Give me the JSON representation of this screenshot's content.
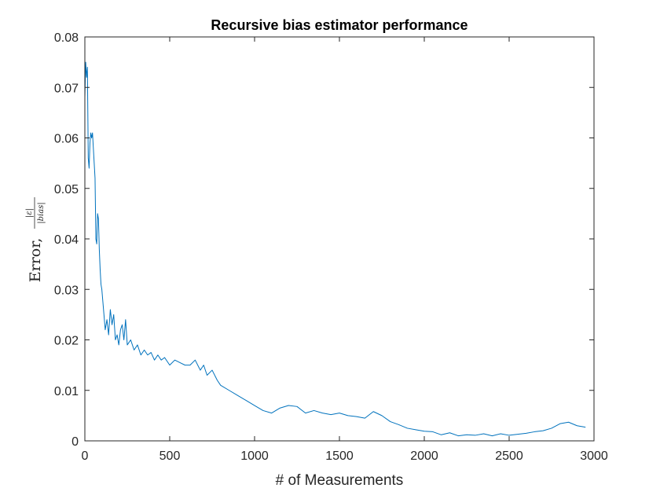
{
  "chart_data": {
    "type": "line",
    "title": "Recursive bias estimator performance",
    "xlabel": "# of Measurements",
    "ylabel": "Error,",
    "ylabel_numerator": "|ε|",
    "ylabel_denominator": "|bias|",
    "xlim": [
      0,
      3000
    ],
    "ylim": [
      0,
      0.08
    ],
    "xticks": [
      0,
      500,
      1000,
      1500,
      2000,
      2500,
      3000
    ],
    "xtick_labels": [
      "0",
      "500",
      "1000",
      "1500",
      "2000",
      "2500",
      "3000"
    ],
    "yticks": [
      0,
      0.01,
      0.02,
      0.03,
      0.04,
      0.05,
      0.06,
      0.07,
      0.08
    ],
    "ytick_labels": [
      "0",
      "0.01",
      "0.02",
      "0.03",
      "0.04",
      "0.05",
      "0.06",
      "0.07",
      "0.08"
    ],
    "grid": false,
    "legend": "none",
    "line_color": "#0072BD",
    "series": [
      {
        "x": [
          0,
          5,
          10,
          15,
          20,
          25,
          30,
          35,
          40,
          45,
          50,
          55,
          60,
          65,
          70,
          75,
          80,
          85,
          90,
          95,
          100,
          110,
          120,
          130,
          140,
          150,
          160,
          170,
          180,
          190,
          200,
          210,
          220,
          230,
          240,
          250,
          270,
          290,
          310,
          330,
          350,
          370,
          390,
          410,
          430,
          450,
          470,
          500,
          530,
          560,
          590,
          620,
          650,
          680,
          700,
          720,
          750,
          780,
          800,
          850,
          900,
          950,
          1000,
          1050,
          1100,
          1150,
          1200,
          1250,
          1300,
          1350,
          1400,
          1450,
          1500,
          1550,
          1600,
          1650,
          1700,
          1750,
          1800,
          1850,
          1900,
          1950,
          2000,
          2050,
          2100,
          2150,
          2200,
          2250,
          2300,
          2350,
          2400,
          2450,
          2500,
          2550,
          2600,
          2650,
          2700,
          2750,
          2800,
          2850,
          2900,
          2950
        ],
        "y": [
          0.068,
          0.075,
          0.072,
          0.074,
          0.056,
          0.054,
          0.059,
          0.061,
          0.06,
          0.061,
          0.058,
          0.055,
          0.052,
          0.04,
          0.039,
          0.045,
          0.044,
          0.038,
          0.034,
          0.031,
          0.03,
          0.026,
          0.022,
          0.024,
          0.021,
          0.026,
          0.023,
          0.025,
          0.02,
          0.021,
          0.019,
          0.022,
          0.023,
          0.02,
          0.024,
          0.019,
          0.02,
          0.018,
          0.019,
          0.017,
          0.018,
          0.017,
          0.0175,
          0.016,
          0.017,
          0.016,
          0.0165,
          0.015,
          0.016,
          0.0155,
          0.015,
          0.015,
          0.016,
          0.014,
          0.015,
          0.013,
          0.014,
          0.012,
          0.011,
          0.01,
          0.009,
          0.008,
          0.007,
          0.006,
          0.0055,
          0.0065,
          0.007,
          0.0068,
          0.0055,
          0.006,
          0.0055,
          0.0052,
          0.0055,
          0.005,
          0.0048,
          0.0045,
          0.0058,
          0.005,
          0.0038,
          0.0032,
          0.0025,
          0.0022,
          0.0019,
          0.0018,
          0.0012,
          0.0016,
          0.001,
          0.0012,
          0.0011,
          0.0014,
          0.001,
          0.0014,
          0.0011,
          0.0013,
          0.0015,
          0.0018,
          0.002,
          0.0025,
          0.0034,
          0.0037,
          0.003,
          0.0027
        ]
      }
    ]
  }
}
